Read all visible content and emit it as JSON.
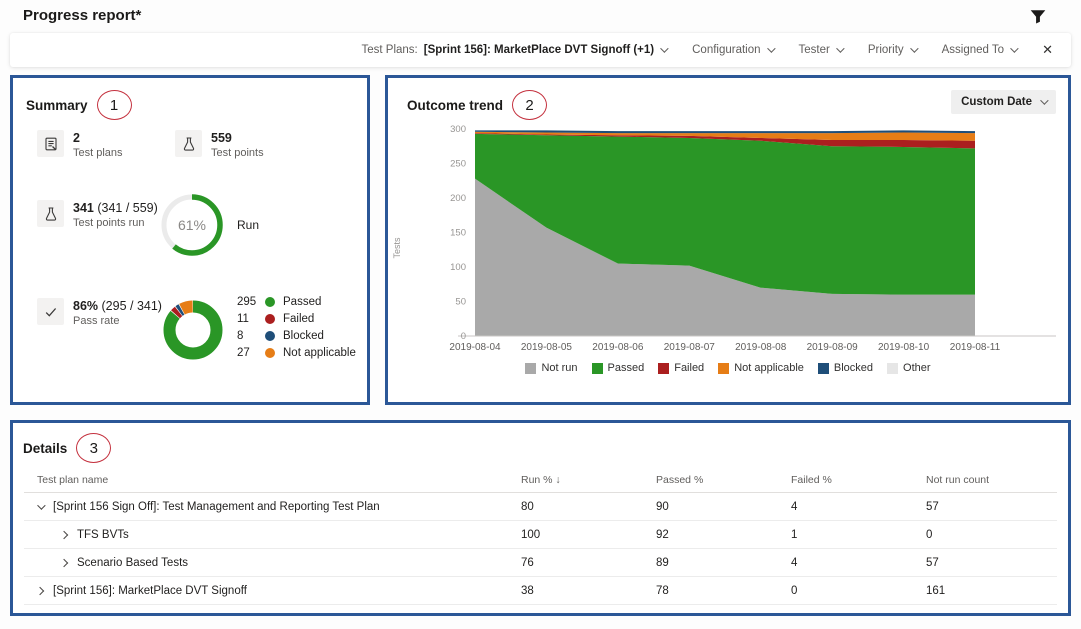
{
  "page": {
    "title": "Progress report*"
  },
  "filter_bar": {
    "test_plans_label": "Test Plans:",
    "test_plans_value": "[Sprint 156]: MarketPlace DVT Signoff (+1)",
    "dropdowns": [
      "Configuration",
      "Tester",
      "Priority",
      "Assigned To"
    ],
    "close_glyph": "✕"
  },
  "summary": {
    "title": "Summary",
    "annotation": "1",
    "stats": [
      {
        "icon": "test-plan",
        "value": "2",
        "suffix": "",
        "label": "Test plans"
      },
      {
        "icon": "beaker",
        "value": "559",
        "suffix": "",
        "label": "Test points"
      },
      {
        "icon": "beaker",
        "value": "341",
        "suffix": " (341 / 559)",
        "label": "Test points run"
      },
      {
        "icon": "check",
        "value": "86%",
        "suffix": " (295 / 341)",
        "label": "Pass rate"
      }
    ],
    "run_gauge": {
      "percent": 61,
      "value_text": "61%",
      "label": "Run",
      "color": "#2a9626",
      "track": "#ebebeb"
    },
    "outcome_donut": {
      "total": 341,
      "segments": [
        {
          "count": 295,
          "label": "Passed",
          "color": "#2a9626"
        },
        {
          "count": 11,
          "label": "Failed",
          "color": "#ab1f1f"
        },
        {
          "count": 8,
          "label": "Blocked",
          "color": "#1f4e79"
        },
        {
          "count": 27,
          "label": "Not applicable",
          "color": "#e67d16"
        }
      ],
      "legend_order": [
        0,
        1,
        2,
        3
      ]
    }
  },
  "trend": {
    "title": "Outcome trend",
    "annotation": "2",
    "date_button": "Custom Date"
  },
  "chart_data": {
    "type": "area",
    "stacked": true,
    "title": "Outcome trend",
    "ylabel": "Tests",
    "ylim": [
      0,
      300
    ],
    "yticks": [
      0,
      50,
      100,
      150,
      200,
      250,
      300
    ],
    "x": [
      "2019-08-04",
      "2019-08-05",
      "2019-08-06",
      "2019-08-07",
      "2019-08-08",
      "2019-08-09",
      "2019-08-10",
      "2019-08-11"
    ],
    "series": [
      {
        "name": "Not run",
        "color": "#a9a9a9",
        "values": [
          228,
          157,
          105,
          102,
          70,
          61,
          60,
          60
        ]
      },
      {
        "name": "Passed",
        "color": "#2a9626",
        "values": [
          65,
          134,
          184,
          185,
          213,
          214,
          214,
          212
        ]
      },
      {
        "name": "Failed",
        "color": "#ab1f1f",
        "values": [
          1,
          1,
          2,
          3,
          4,
          9,
          10,
          11
        ]
      },
      {
        "name": "Not applicable",
        "color": "#e67d16",
        "values": [
          2,
          3,
          3,
          4,
          7,
          10,
          11,
          11
        ]
      },
      {
        "name": "Blocked",
        "color": "#1f4e79",
        "values": [
          2,
          3,
          3,
          3,
          3,
          3,
          3,
          3
        ]
      }
    ],
    "legend": [
      {
        "name": "Not run",
        "color": "#a9a9a9"
      },
      {
        "name": "Passed",
        "color": "#2a9626"
      },
      {
        "name": "Failed",
        "color": "#ab1f1f"
      },
      {
        "name": "Not applicable",
        "color": "#e67d16"
      },
      {
        "name": "Blocked",
        "color": "#1f4e79"
      },
      {
        "name": "Other",
        "color": "#e6e6e6"
      }
    ],
    "legend_position": "bottom",
    "grid": false
  },
  "details": {
    "title": "Details",
    "annotation": "3",
    "columns": [
      "Test plan name",
      "Run % ↓",
      "Passed %",
      "Failed %",
      "Not run count"
    ],
    "rows": [
      {
        "name": "[Sprint 156 Sign Off]: Test Management and Reporting Test Plan",
        "run": "80",
        "passed": "90",
        "failed": "4",
        "notrun": "57",
        "level": 0,
        "expanded": true
      },
      {
        "name": "TFS BVTs",
        "run": "100",
        "passed": "92",
        "failed": "1",
        "notrun": "0",
        "level": 1,
        "expanded": false
      },
      {
        "name": "Scenario Based Tests",
        "run": "76",
        "passed": "89",
        "failed": "4",
        "notrun": "57",
        "level": 1,
        "expanded": false
      },
      {
        "name": "[Sprint 156]: MarketPlace DVT Signoff",
        "run": "38",
        "passed": "78",
        "failed": "0",
        "notrun": "161",
        "level": 0,
        "expanded": false
      }
    ]
  }
}
